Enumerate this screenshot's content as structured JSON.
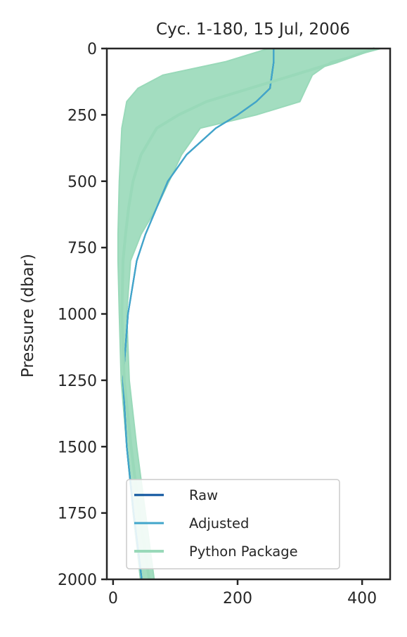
{
  "chart_data": {
    "type": "line",
    "title": "Cyc. 1-180, 15 Jul, 2006",
    "xlabel": "",
    "ylabel": "Pressure (dbar)",
    "xlim": [
      -10,
      445
    ],
    "ylim": [
      2000,
      0
    ],
    "y_inverted": true,
    "xticks": [
      0,
      200,
      400
    ],
    "yticks": [
      0,
      250,
      500,
      750,
      1000,
      1250,
      1500,
      1750,
      2000
    ],
    "grid": false,
    "legend_position": "lower-left",
    "pressure_levels": [
      0,
      50,
      100,
      150,
      200,
      250,
      300,
      400,
      500,
      600,
      700,
      800,
      1000,
      1250,
      1500,
      1750,
      2000
    ],
    "series": [
      {
        "name": "Raw",
        "color": "#08519c",
        "line_width": 2.2,
        "x": [
          258,
          258,
          255,
          252,
          230,
          200,
          165,
          118,
          88,
          70,
          52,
          38,
          24,
          16,
          22,
          33,
          46
        ]
      },
      {
        "name": "Adjusted",
        "color": "#41a6cb",
        "line_width": 2.2,
        "x": [
          258,
          258,
          255,
          252,
          230,
          200,
          165,
          118,
          88,
          70,
          52,
          38,
          24,
          16,
          22,
          33,
          46
        ]
      },
      {
        "name": "Python Package",
        "color": "#99d9b9",
        "line_width": 4,
        "x": [
          420,
          360,
          290,
          220,
          150,
          105,
          70,
          45,
          32,
          25,
          20,
          16,
          14,
          18,
          29,
          42,
          58
        ]
      }
    ],
    "envelope": {
      "series": "Python Package",
      "x_min": [
        250,
        180,
        80,
        40,
        22,
        18,
        14,
        12,
        10,
        9,
        8,
        8,
        10,
        13,
        22,
        32,
        44
      ],
      "x_max": [
        430,
        350,
        320,
        310,
        300,
        230,
        140,
        110,
        90,
        70,
        45,
        28,
        22,
        26,
        38,
        52,
        66
      ]
    }
  }
}
